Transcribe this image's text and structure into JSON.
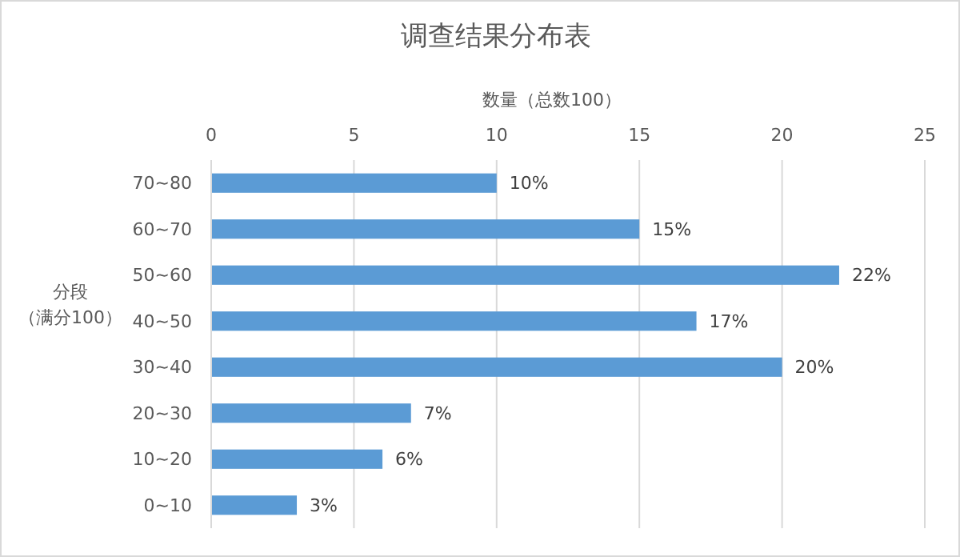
{
  "chart_data": {
    "type": "bar",
    "orientation": "horizontal",
    "title": "调查结果分布表",
    "xlabel": "数量（总数100）",
    "ylabel": "分段（满分100）",
    "categories": [
      "70~80",
      "60~70",
      "50~60",
      "40~50",
      "30~40",
      "20~30",
      "10~20",
      "0~10"
    ],
    "values": [
      10,
      15,
      22,
      17,
      20,
      7,
      6,
      3
    ],
    "value_labels": [
      "10%",
      "15%",
      "22%",
      "17%",
      "20%",
      "7%",
      "6%",
      "3%"
    ],
    "color": "#5b9bd5",
    "xlim": [
      0,
      25
    ],
    "xticks": [
      0,
      5,
      10,
      15,
      20,
      25
    ],
    "grid": "x"
  }
}
